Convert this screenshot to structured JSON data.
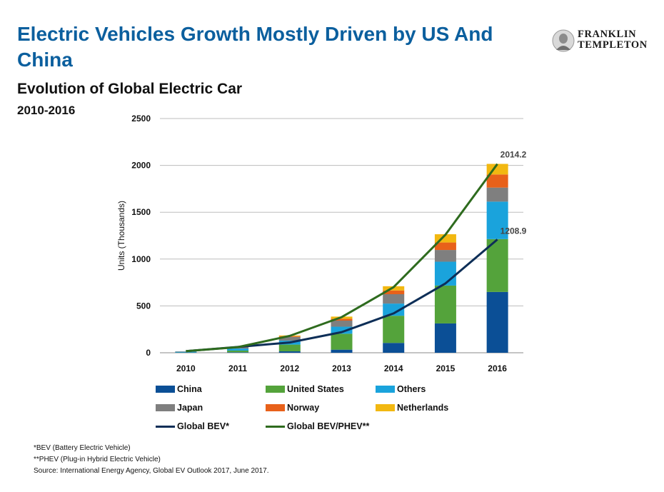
{
  "title": "Electric Vehicles Growth Mostly Driven by US And China",
  "subtitle": "Evolution of Global Electric Car",
  "subtitle2": "2010-2016",
  "logo": {
    "line1": "FRANKLIN",
    "line2": "TEMPLETON"
  },
  "chart_data": {
    "type": "bar",
    "stacked": true,
    "categories": [
      "2010",
      "2011",
      "2012",
      "2013",
      "2014",
      "2015",
      "2016"
    ],
    "ylabel": "Units (Thousands)",
    "xlabel": "",
    "ylim": [
      0,
      2500
    ],
    "yticks": [
      0,
      500,
      1000,
      1500,
      2000,
      2500
    ],
    "grid": "horizontal",
    "legend_position": "bottom",
    "series": [
      {
        "name": "China",
        "color": "#0b4f96",
        "values": [
          2,
          5,
          15,
          33,
          105,
          313,
          649
        ]
      },
      {
        "name": "United States",
        "color": "#54a33b",
        "values": [
          1,
          18,
          72,
          170,
          290,
          404,
          564
        ]
      },
      {
        "name": "Others",
        "color": "#1aa3dc",
        "values": [
          8,
          22,
          42,
          75,
          130,
          255,
          400
        ]
      },
      {
        "name": "Japan",
        "color": "#7f7f7f",
        "values": [
          3,
          15,
          40,
          65,
          100,
          125,
          150
        ]
      },
      {
        "name": "Norway",
        "color": "#e8611a",
        "values": [
          1,
          3,
          8,
          20,
          40,
          80,
          140
        ]
      },
      {
        "name": "Netherlands",
        "color": "#f2b811",
        "values": [
          0,
          2,
          8,
          23,
          45,
          88,
          113
        ]
      }
    ],
    "lines": [
      {
        "name": "Global BEV*",
        "color": "#0d2e57",
        "values": [
          17,
          62,
          110,
          220,
          420,
          740,
          1208.9
        ],
        "end_label": "1208.9"
      },
      {
        "name": "Global BEV/PHEV**",
        "color": "#2e6b1e",
        "values": [
          17,
          60,
          180,
          380,
          700,
          1260,
          2014.2
        ],
        "end_label": "2014.2"
      }
    ]
  },
  "footnotes": [
    "*BEV (Battery Electric Vehicle)",
    "**PHEV (Plug-in Hybrid Electric Vehicle)",
    "Source: International Energy Agency, Global EV Outlook 2017, June 2017."
  ]
}
